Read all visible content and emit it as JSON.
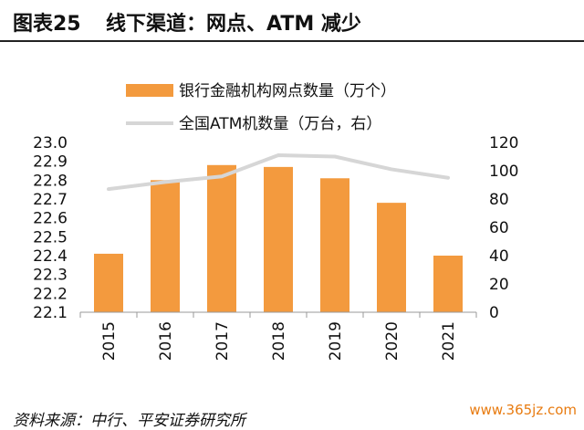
{
  "figure": {
    "label": "图表25",
    "title": "线下渠道：网点、ATM 减少",
    "source": "资料来源：中行、平安证券研究所",
    "watermark": "www.365jz.com"
  },
  "chart_data": {
    "type": "bar",
    "categories": [
      "2015",
      "2016",
      "2017",
      "2018",
      "2019",
      "2020",
      "2021"
    ],
    "series": [
      {
        "name": "银行金融机构网点数量（万个）",
        "kind": "bar",
        "axis": "left",
        "color": "#f39a3e",
        "values": [
          22.41,
          22.8,
          22.88,
          22.87,
          22.81,
          22.68,
          22.4
        ]
      },
      {
        "name": "全国ATM机数量（万台，右）",
        "kind": "line",
        "axis": "right",
        "color": "#d6d6d6",
        "values": [
          87,
          92,
          96,
          111,
          110,
          101,
          95
        ]
      }
    ],
    "yleft": {
      "range": [
        22.1,
        23.0
      ],
      "ticks": [
        "23.0",
        "22.9",
        "22.8",
        "22.7",
        "22.6",
        "22.5",
        "22.4",
        "22.3",
        "22.2",
        "22.1"
      ]
    },
    "yright": {
      "range": [
        0,
        120
      ],
      "ticks": [
        "120",
        "100",
        "80",
        "60",
        "40",
        "20",
        "0"
      ]
    },
    "grid": false,
    "legend": "top-center"
  }
}
